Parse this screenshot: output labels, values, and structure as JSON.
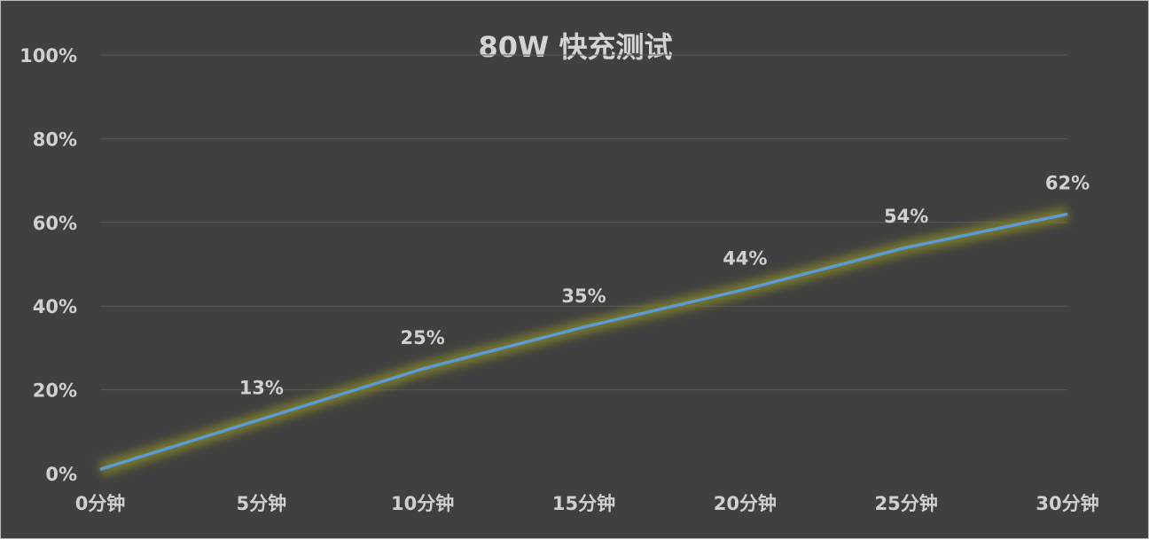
{
  "chart_data": {
    "type": "line",
    "title": "80W 快充测试",
    "categories": [
      "0分钟",
      "5分钟",
      "10分钟",
      "15分钟",
      "20分钟",
      "25分钟",
      "30分钟"
    ],
    "series": [
      {
        "values": [
          1,
          13,
          25,
          35,
          44,
          54,
          62
        ]
      }
    ],
    "data_labels": [
      "",
      "13%",
      "25%",
      "35%",
      "44%",
      "54%",
      "62%"
    ],
    "ylim": [
      0,
      100
    ],
    "yticks": [
      "0%",
      "20%",
      "40%",
      "60%",
      "80%",
      "100%"
    ],
    "grid": true,
    "legend": "none",
    "colors": {
      "background": "#404040",
      "line": "#5b9bd5",
      "glow": "#7a7a2e",
      "grid": "#595959",
      "text": "#d0d0d0"
    }
  }
}
